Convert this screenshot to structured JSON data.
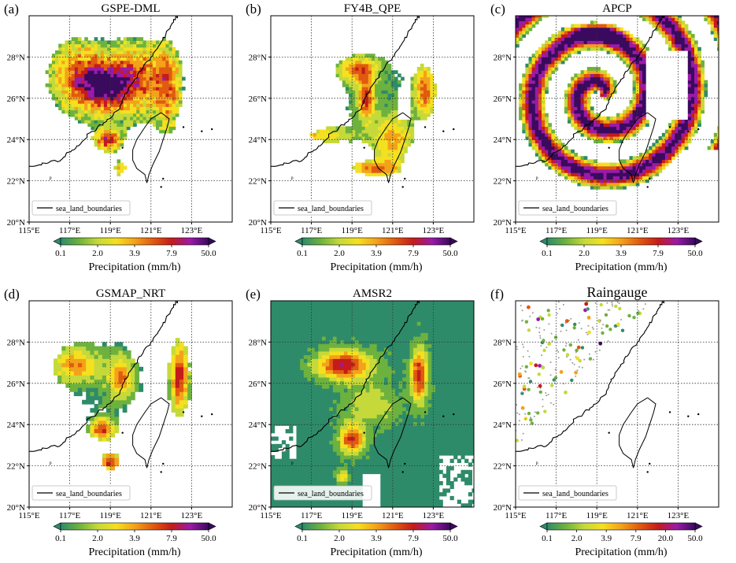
{
  "figure": {
    "panels": [
      {
        "letter": "(a)",
        "title": "GSPE-DML",
        "type": "dml"
      },
      {
        "letter": "(b)",
        "title": "FY4B_QPE",
        "type": "fy4b"
      },
      {
        "letter": "(c)",
        "title": "APCP",
        "type": "apcp"
      },
      {
        "letter": "(d)",
        "title": "GSMAP_NRT",
        "type": "gsmap"
      },
      {
        "letter": "(e)",
        "title": "AMSR2",
        "type": "amsr2"
      },
      {
        "letter": "(f)",
        "title": "Raingauge",
        "type": "gauge"
      }
    ],
    "legend_label": "sea_land_boundaries",
    "lon_ticks": [
      "115°E",
      "117°E",
      "119°E",
      "121°E",
      "123°E"
    ],
    "lat_ticks": [
      "20°N",
      "22°N",
      "24°N",
      "26°N",
      "28°N"
    ],
    "lon_range": [
      115,
      125
    ],
    "lat_range": [
      20,
      30
    ],
    "colorbar": {
      "label": "Precipitation (mm/h)",
      "ticks_standard": [
        "0.1",
        "2.0",
        "3.9",
        "7.9",
        "50.0"
      ],
      "ticks_gauge": [
        "0.1",
        "2.0",
        "3.9",
        "7.9",
        "20.0",
        "50.0"
      ],
      "colors": [
        "#2e8b6a",
        "#6db23e",
        "#c5d93a",
        "#f5e020",
        "#f4a21a",
        "#e05a10",
        "#c51b1b",
        "#9b1aa8",
        "#3a0a5e"
      ]
    },
    "north_arrow_symbol": "ᵖ"
  }
}
